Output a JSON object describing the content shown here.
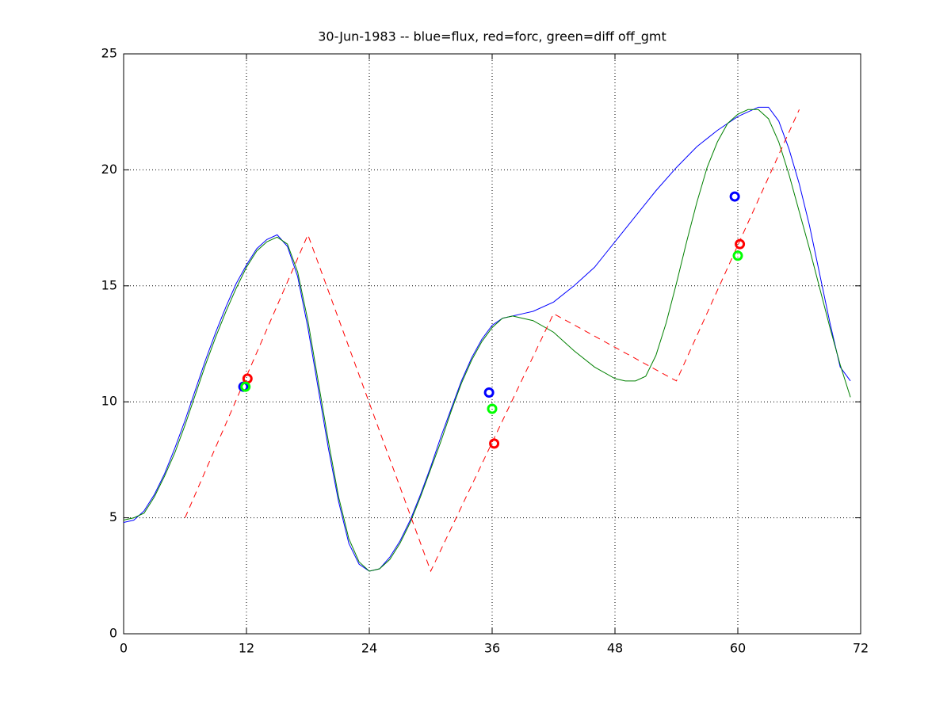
{
  "chart_data": {
    "type": "line",
    "title": "30-Jun-1983 -- blue=flux, red=forc, green=diff off_gmt",
    "xlim": [
      0,
      72
    ],
    "xticks": [
      0,
      12,
      24,
      36,
      48,
      60,
      72
    ],
    "ylim": [
      0,
      25
    ],
    "yticks": [
      0,
      5,
      10,
      15,
      20,
      25
    ],
    "grid": true,
    "series": [
      {
        "color": "#0000ff",
        "style": "solid",
        "x": [
          0,
          1,
          2,
          3,
          4,
          5,
          6,
          7,
          8,
          9,
          10,
          11,
          12,
          13,
          14,
          15,
          16,
          17,
          18,
          19,
          20,
          21,
          22,
          23,
          24,
          25,
          26,
          27,
          28,
          29,
          30,
          31,
          32,
          33,
          34,
          35,
          36,
          37,
          38,
          39,
          40,
          42,
          44,
          46,
          48,
          50,
          52,
          54,
          56,
          58,
          60,
          62,
          63,
          64,
          65,
          66,
          67,
          68,
          69,
          70,
          71
        ],
        "values": [
          4.8,
          4.9,
          5.3,
          6.0,
          6.9,
          8.0,
          9.2,
          10.5,
          11.8,
          13.0,
          14.1,
          15.1,
          15.9,
          16.6,
          17.0,
          17.2,
          16.7,
          15.4,
          13.2,
          10.6,
          8.0,
          5.7,
          3.9,
          3.0,
          2.7,
          2.8,
          3.3,
          4.0,
          4.9,
          6.0,
          7.2,
          8.5,
          9.7,
          10.9,
          11.9,
          12.7,
          13.3,
          13.6,
          13.7,
          13.8,
          13.9,
          14.3,
          15.0,
          15.8,
          16.9,
          18.0,
          19.1,
          20.1,
          21.0,
          21.7,
          22.3,
          22.7,
          22.7,
          22.1,
          20.9,
          19.4,
          17.6,
          15.5,
          13.4,
          11.5,
          10.9
        ]
      },
      {
        "color": "#008000",
        "style": "solid",
        "x": [
          0,
          1,
          2,
          3,
          4,
          5,
          6,
          7,
          8,
          9,
          10,
          11,
          12,
          13,
          14,
          15,
          16,
          17,
          18,
          19,
          20,
          21,
          22,
          23,
          24,
          25,
          26,
          27,
          28,
          29,
          30,
          31,
          32,
          33,
          34,
          35,
          36,
          37,
          38,
          40,
          42,
          44,
          46,
          48,
          49,
          50,
          51,
          52,
          53,
          54,
          55,
          56,
          57,
          58,
          59,
          60,
          61,
          62,
          63,
          64,
          65,
          66,
          67,
          68,
          69,
          70,
          71
        ],
        "values": [
          4.9,
          5.0,
          5.2,
          5.9,
          6.8,
          7.8,
          9.0,
          10.3,
          11.6,
          12.8,
          13.9,
          14.9,
          15.8,
          16.5,
          16.9,
          17.1,
          16.8,
          15.6,
          13.5,
          10.9,
          8.3,
          5.9,
          4.1,
          3.1,
          2.7,
          2.8,
          3.2,
          3.9,
          4.8,
          5.9,
          7.1,
          8.3,
          9.6,
          10.8,
          11.8,
          12.6,
          13.2,
          13.6,
          13.7,
          13.5,
          13.0,
          12.2,
          11.5,
          11.0,
          10.9,
          10.9,
          11.1,
          12.0,
          13.4,
          15.1,
          16.9,
          18.6,
          20.1,
          21.2,
          22.0,
          22.4,
          22.6,
          22.6,
          22.2,
          21.2,
          19.8,
          18.2,
          16.6,
          14.9,
          13.2,
          11.6,
          10.2
        ]
      },
      {
        "color": "#ff0000",
        "style": "dashed",
        "x": [
          6,
          18,
          30,
          42,
          54,
          66
        ],
        "values": [
          5.0,
          17.2,
          2.7,
          13.8,
          10.9,
          22.6
        ]
      },
      {
        "color": "#0000ff",
        "style": "markers",
        "x": [
          11.7,
          35.7,
          59.7
        ],
        "values": [
          10.65,
          10.4,
          18.85
        ]
      },
      {
        "color": "#ff0000",
        "style": "markers",
        "x": [
          12.1,
          36.2,
          60.2
        ],
        "values": [
          11.0,
          8.2,
          16.8
        ]
      },
      {
        "color": "#00ff00",
        "style": "markers",
        "x": [
          11.9,
          36.0,
          60.0
        ],
        "values": [
          10.65,
          9.7,
          16.3
        ]
      }
    ]
  }
}
